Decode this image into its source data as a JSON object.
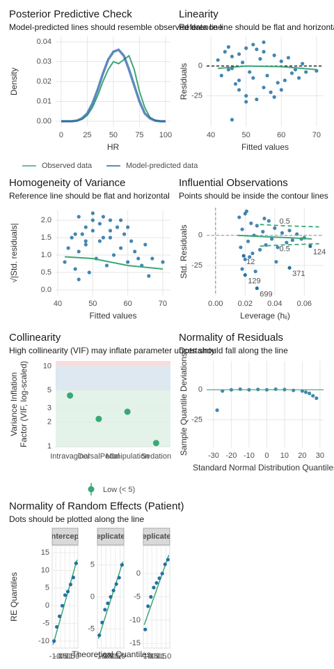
{
  "chart_data": [
    {
      "type": "line",
      "title": "Posterior Predictive Check",
      "subtitle": "Model-predicted lines should resemble observed data line",
      "xlabel": "HR",
      "ylabel": "Density",
      "xlim": [
        -5.3,
        104.7
      ],
      "ylim": [
        -0.0028,
        0.0428
      ],
      "xticks": [
        0,
        25,
        50,
        75,
        100
      ],
      "yticks": [
        {
          "value": 0,
          "label": "0.00"
        },
        0.01,
        0.02,
        0.03,
        0.04
      ],
      "x": [
        0,
        5,
        10,
        15,
        20,
        25,
        30,
        35,
        40,
        45,
        50,
        55,
        60,
        65,
        70,
        75,
        80,
        85,
        90,
        95,
        100
      ],
      "series": [
        {
          "name": "Observed data",
          "color": "#3aa876",
          "values": [
            0,
            0,
            0,
            0.0002,
            0.001,
            0.003,
            0.007,
            0.013,
            0.02,
            0.026,
            0.03,
            0.029,
            0.031,
            0.033,
            0.026,
            0.015,
            0.007,
            0.002,
            0.0005,
            0,
            0
          ]
        },
        {
          "name": "Model-predicted data",
          "color": "#2a62a8",
          "values": [
            0,
            0,
            0,
            0.0003,
            0.0015,
            0.004,
            0.009,
            0.016,
            0.024,
            0.031,
            0.035,
            0.036,
            0.033,
            0.026,
            0.018,
            0.01,
            0.004,
            0.0015,
            0.0003,
            0,
            0
          ]
        }
      ]
    },
    {
      "type": "scatter",
      "title": "Linearity",
      "subtitle": "Reference line should be flat and horizontal",
      "xlabel": "Fitted values",
      "ylabel": "Residuals",
      "xlim": [
        38.8,
        72
      ],
      "ylim": [
        -51,
        25
      ],
      "xticks": [
        40,
        50,
        60,
        70
      ],
      "yticks": [
        0,
        -25
      ],
      "color": "#2471a3",
      "x": [
        42,
        43,
        44,
        45,
        46,
        46,
        47,
        48,
        48,
        49,
        50,
        50,
        51,
        52,
        52,
        53,
        54,
        55,
        55,
        56,
        57,
        58,
        59,
        60,
        61,
        62,
        63,
        64,
        65,
        66,
        67,
        70,
        45,
        50,
        55,
        60,
        48,
        53,
        58,
        46
      ],
      "y": [
        5,
        -8,
        12,
        -3,
        -45,
        8,
        -15,
        10,
        -20,
        3,
        15,
        -25,
        -5,
        18,
        -10,
        -28,
        6,
        -18,
        12,
        -8,
        -22,
        9,
        -14,
        4,
        -12,
        7,
        -6,
        -3,
        -10,
        2,
        -5,
        -4,
        16,
        -30,
        20,
        -20,
        -12,
        14,
        -26,
        -2
      ],
      "smooth": {
        "color": "#3aa876",
        "x": [
          42,
          50,
          60,
          70
        ],
        "y": [
          -2,
          0,
          -0.5,
          -3
        ]
      },
      "reference": {
        "y": 0,
        "color": "#000000",
        "dashed": true
      }
    },
    {
      "type": "scatter",
      "title": "Homogeneity of Variance",
      "subtitle": "Reference line should be flat and horizontal",
      "xlabel": "Fitted values",
      "ylabel": "√|Std. residuals|",
      "xlim": [
        39.4,
        72.2
      ],
      "ylim": [
        -0.16,
        2.28
      ],
      "xticks": [
        40,
        50,
        60,
        70
      ],
      "yticks": [
        {
          "value": 0,
          "label": "0.0"
        },
        0.5,
        {
          "value": 1,
          "label": "1.0"
        },
        1.5,
        {
          "value": 2,
          "label": "2.0"
        }
      ],
      "color": "#2471a3",
      "x": [
        42,
        43,
        44,
        45,
        46,
        46,
        47,
        48,
        48,
        49,
        50,
        50,
        51,
        52,
        52,
        53,
        54,
        55,
        55,
        56,
        57,
        58,
        59,
        60,
        61,
        62,
        63,
        64,
        65,
        66,
        67,
        70,
        45,
        50,
        55,
        60,
        48,
        53,
        58,
        46
      ],
      "y": [
        0.8,
        1.2,
        1.5,
        0.6,
        2.1,
        1.1,
        1.6,
        1.3,
        1.8,
        0.5,
        1.7,
        2.0,
        0.9,
        1.9,
        1.4,
        2.1,
        0.7,
        1.7,
        1.5,
        1.0,
        1.8,
        1.2,
        1.6,
        0.8,
        1.4,
        1.1,
        0.9,
        0.7,
        1.3,
        0.4,
        0.9,
        0.8,
        1.6,
        2.2,
        2.0,
        1.8,
        1.4,
        1.5,
        2.0,
        0.3
      ],
      "smooth": {
        "color": "#3aa876",
        "x": [
          42,
          50,
          60,
          70
        ],
        "y": [
          0.95,
          0.9,
          0.7,
          0.6
        ]
      }
    },
    {
      "type": "scatter",
      "title": "Influential Observations",
      "subtitle": "Points should be inside the contour lines",
      "xlabel": "Leverage (hᵢᵢ)",
      "ylabel": "Std. Residuals",
      "xlim": [
        -0.006,
        0.073
      ],
      "ylim": [
        -50,
        23
      ],
      "xticks": [
        {
          "value": 0,
          "label": "0.00"
        },
        0.02,
        0.04,
        0.06
      ],
      "yticks": [
        0,
        -25
      ],
      "color": "#2471a3",
      "x": [
        0.016,
        0.017,
        0.018,
        0.02,
        0.021,
        0.022,
        0.024,
        0.025,
        0.026,
        0.028,
        0.03,
        0.032,
        0.034,
        0.036,
        0.038,
        0.04,
        0.042,
        0.045,
        0.048,
        0.05,
        0.052,
        0.055,
        0.058,
        0.06,
        0.018,
        0.02,
        0.023,
        0.027,
        0.033,
        0.041
      ],
      "y": [
        15,
        -10,
        5,
        -20,
        20,
        -5,
        10,
        -15,
        0,
        8,
        -12,
        3,
        -8,
        12,
        -3,
        6,
        -10,
        2,
        -6,
        4,
        -4,
        1,
        -3,
        -2,
        -28,
        18,
        -18,
        -30,
        14,
        -22
      ],
      "point_labels": [
        {
          "label": "129",
          "x": 0.02,
          "y": -33
        },
        {
          "label": "699",
          "x": 0.028,
          "y": -44
        },
        {
          "label": "371",
          "x": 0.05,
          "y": -27
        },
        {
          "label": "124",
          "x": 0.064,
          "y": -9
        },
        {
          "label": "12",
          "x": 0.019,
          "y": -17
        }
      ],
      "contours": [
        {
          "label": "0.5",
          "color": "#3aa876",
          "x": [
            0.03,
            0.045,
            0.07
          ],
          "y": [
            9,
            8,
            7
          ]
        },
        {
          "label": "0.5",
          "color": "#3aa876",
          "x": [
            0.03,
            0.045,
            0.07
          ],
          "y": [
            -9,
            -8,
            -7
          ]
        }
      ],
      "smooth": {
        "color": "#3aa876",
        "x": [
          0.015,
          0.03,
          0.05,
          0.065
        ],
        "y": [
          0,
          -1,
          -2,
          -3
        ]
      },
      "reference": {
        "y": 0,
        "x": 0,
        "color": "#999999",
        "dashed": true
      }
    },
    {
      "type": "dot",
      "title": "Collinearity",
      "subtitle": "High collinearity (VIF) may inflate parameter uncertainty",
      "ylabel": [
        "Variance Inflation",
        "Factor (VIF, log-scaled)"
      ],
      "ylog": true,
      "ylim": [
        0.97,
        11.6
      ],
      "yticks": [
        1,
        2,
        3,
        5,
        10
      ],
      "categories": [
        "Intravaginal",
        "DorsalPedal",
        "Manipulation",
        "Sedation"
      ],
      "values": [
        4.3,
        2.2,
        2.7,
        1.1
      ],
      "color": "#3aa876",
      "legend": "Low (< 5)",
      "bands": [
        {
          "from": 0.97,
          "to": 5,
          "color": "#e3f3ea"
        },
        {
          "from": 5,
          "to": 10,
          "color": "#dde8f1"
        },
        {
          "from": 10,
          "to": 11.6,
          "color": "#f8dcdc"
        }
      ]
    },
    {
      "type": "scatter",
      "title": "Normality of Residuals",
      "subtitle": "Dots should fall along the line",
      "xlabel": "Standard Normal Distribution Quantiles",
      "ylabel": "Sample Quantile Deviations",
      "xlim": [
        -33.9,
        32
      ],
      "ylim": [
        -48,
        24
      ],
      "xticks": [
        -30,
        -20,
        -10,
        0,
        10,
        20,
        30
      ],
      "yticks": [
        0,
        -25
      ],
      "color": "#2471a3",
      "x": [
        -28,
        -25,
        -20,
        -15,
        -10,
        -5,
        0,
        5,
        10,
        15,
        20,
        22,
        24,
        26,
        28
      ],
      "y": [
        -17,
        -1,
        0,
        0.5,
        0,
        0.3,
        0,
        0.5,
        0.2,
        -0.5,
        -1,
        -2,
        -3,
        -5,
        -7
      ],
      "reference": {
        "y": 0,
        "color": "#3aa876",
        "dashed": false
      }
    },
    {
      "type": "facet-qq",
      "title": "Normality of Random Effects (Patient)",
      "subtitle": "Dots should be plotted along the line",
      "xlabel": "Theoretical Quantiles",
      "ylabel": "RE Quantiles",
      "xlim": [
        -1.4,
        1.4
      ],
      "xticks": [
        {
          "value": -1,
          "label": "-1.0"
        },
        -0.5,
        {
          "value": 0,
          "label": "0.0"
        },
        0.5,
        {
          "value": 1,
          "label": "1.0"
        }
      ],
      "color": "#2471a3",
      "line_color": "#3aa876",
      "facets": [
        {
          "strip": "ntercep",
          "ylim": [
            -12,
            17
          ],
          "yticks": [
            15,
            10,
            5,
            0,
            -5,
            -10
          ],
          "x": [
            -1.2,
            -0.9,
            -0.6,
            -0.3,
            0,
            0.3,
            0.6,
            0.9,
            1.2
          ],
          "y": [
            -10,
            -6,
            -3,
            0,
            3,
            4,
            6,
            8,
            12
          ],
          "line": {
            "x": [
              -1.3,
              1.3
            ],
            "y": [
              -11,
              13
            ]
          }
        },
        {
          "strip": "eplicate",
          "ylim": [
            -8,
            8
          ],
          "yticks": [
            5,
            0,
            -5
          ],
          "x": [
            -1.2,
            -0.9,
            -0.6,
            -0.3,
            0,
            0.3,
            0.6,
            0.9,
            1.2
          ],
          "y": [
            -6,
            -4,
            -2,
            -1,
            0,
            1,
            2,
            3,
            5
          ],
          "line": {
            "x": [
              -1.3,
              1.3
            ],
            "y": [
              -6.5,
              5.5
            ]
          }
        },
        {
          "strip": "eplicate",
          "ylim": [
            -16,
            6
          ],
          "yticks": [
            0,
            -5,
            -10,
            -15
          ],
          "x": [
            -1.2,
            -0.9,
            -0.6,
            -0.3,
            0,
            0.3,
            0.6,
            0.9,
            1.2
          ],
          "y": [
            -12,
            -7,
            -5,
            -3,
            -2,
            -1,
            0,
            2,
            3
          ],
          "line": {
            "x": [
              -1.3,
              1.3
            ],
            "y": [
              -11,
              4
            ]
          }
        }
      ]
    }
  ]
}
